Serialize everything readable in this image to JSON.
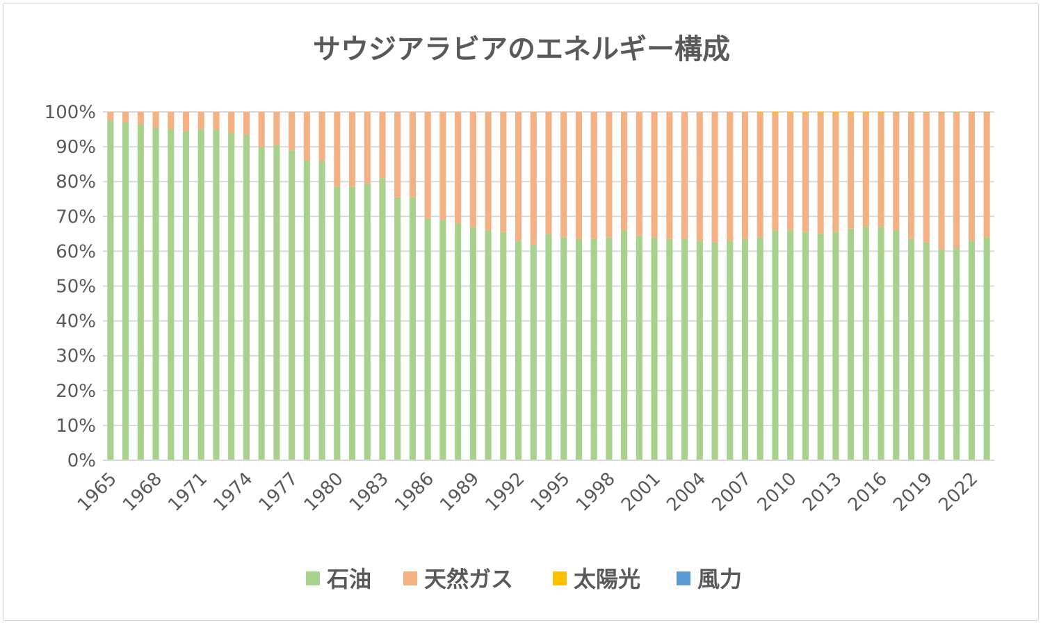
{
  "chart_data": {
    "type": "bar",
    "stacked": true,
    "percent_stacked": true,
    "title": "サウジアラビアのエネルギー構成",
    "xlabel": "",
    "ylabel": "",
    "ylim": [
      0,
      100
    ],
    "y_ticks": [
      "0%",
      "10%",
      "20%",
      "30%",
      "40%",
      "50%",
      "60%",
      "70%",
      "80%",
      "90%",
      "100%"
    ],
    "x_tick_labels": [
      "1965",
      "1968",
      "1971",
      "1974",
      "1977",
      "1980",
      "1983",
      "1986",
      "1989",
      "1992",
      "1995",
      "1998",
      "2001",
      "2004",
      "2007",
      "2010",
      "2013",
      "2016",
      "2019",
      "2022"
    ],
    "grid": true,
    "legend_position": "bottom",
    "categories": [
      "1965",
      "1966",
      "1967",
      "1968",
      "1969",
      "1970",
      "1971",
      "1972",
      "1973",
      "1974",
      "1975",
      "1976",
      "1977",
      "1978",
      "1979",
      "1980",
      "1981",
      "1982",
      "1983",
      "1984",
      "1985",
      "1986",
      "1987",
      "1988",
      "1989",
      "1990",
      "1991",
      "1992",
      "1993",
      "1994",
      "1995",
      "1996",
      "1997",
      "1998",
      "1999",
      "2000",
      "2001",
      "2002",
      "2003",
      "2004",
      "2005",
      "2006",
      "2007",
      "2008",
      "2009",
      "2010",
      "2011",
      "2012",
      "2013",
      "2014",
      "2015",
      "2016",
      "2017",
      "2018",
      "2019",
      "2020",
      "2021",
      "2022",
      "2023"
    ],
    "series": [
      {
        "name": "石油",
        "color": "#a9d18e",
        "values": [
          97.5,
          97,
          96.5,
          95.5,
          95,
          94.5,
          95,
          95,
          94,
          93.5,
          90,
          90.5,
          89,
          86,
          86,
          78.5,
          78.5,
          79.5,
          81,
          75.5,
          75.5,
          69.5,
          69,
          68,
          67,
          66,
          65.5,
          63,
          62,
          65,
          64,
          63.5,
          63.5,
          64,
          66,
          64.5,
          64,
          63.5,
          63.5,
          63,
          62.5,
          63,
          63.5,
          64,
          66,
          66,
          65.5,
          65,
          65.5,
          66.5,
          67,
          67,
          66,
          63.5,
          62.5,
          60.5,
          61,
          63,
          64
        ]
      },
      {
        "name": "天然ガス",
        "color": "#f4b183",
        "values": [
          2.5,
          3,
          3.5,
          4.5,
          5,
          5.5,
          5,
          5,
          6,
          6.5,
          10,
          9.5,
          11,
          14,
          14,
          21.5,
          21.5,
          20.5,
          19,
          24.5,
          24.5,
          30.5,
          31,
          32,
          33,
          34,
          34.5,
          37,
          38,
          35,
          36,
          36.5,
          36.5,
          36,
          34,
          35.5,
          36,
          36.5,
          36.5,
          37,
          37.5,
          37,
          36.5,
          35.7,
          33.6,
          33.6,
          34.1,
          34.6,
          34.1,
          33.1,
          32.6,
          32.6,
          33.8,
          36.3,
          37.3,
          39.3,
          38.8,
          36.8,
          35.8
        ]
      },
      {
        "name": "太陽光",
        "color": "#ffc000",
        "values": [
          0,
          0,
          0,
          0,
          0,
          0,
          0,
          0,
          0,
          0,
          0,
          0,
          0,
          0,
          0,
          0,
          0,
          0,
          0,
          0,
          0,
          0,
          0,
          0,
          0,
          0,
          0,
          0,
          0,
          0,
          0,
          0,
          0,
          0,
          0,
          0,
          0,
          0,
          0,
          0,
          0,
          0,
          0,
          0.3,
          0.4,
          0.4,
          0.4,
          0.4,
          0.4,
          0.4,
          0.4,
          0.4,
          0.15,
          0.15,
          0.15,
          0.15,
          0.15,
          0.15,
          0.15
        ]
      },
      {
        "name": "風力",
        "color": "#5b9bd5",
        "values": [
          0,
          0,
          0,
          0,
          0,
          0,
          0,
          0,
          0,
          0,
          0,
          0,
          0,
          0,
          0,
          0,
          0,
          0,
          0,
          0,
          0,
          0,
          0,
          0,
          0,
          0,
          0,
          0,
          0,
          0,
          0,
          0,
          0,
          0,
          0,
          0,
          0,
          0,
          0,
          0,
          0,
          0,
          0,
          0,
          0,
          0,
          0,
          0,
          0,
          0,
          0,
          0,
          0.05,
          0.05,
          0.05,
          0.05,
          0.05,
          0.05,
          0.05
        ]
      }
    ]
  }
}
